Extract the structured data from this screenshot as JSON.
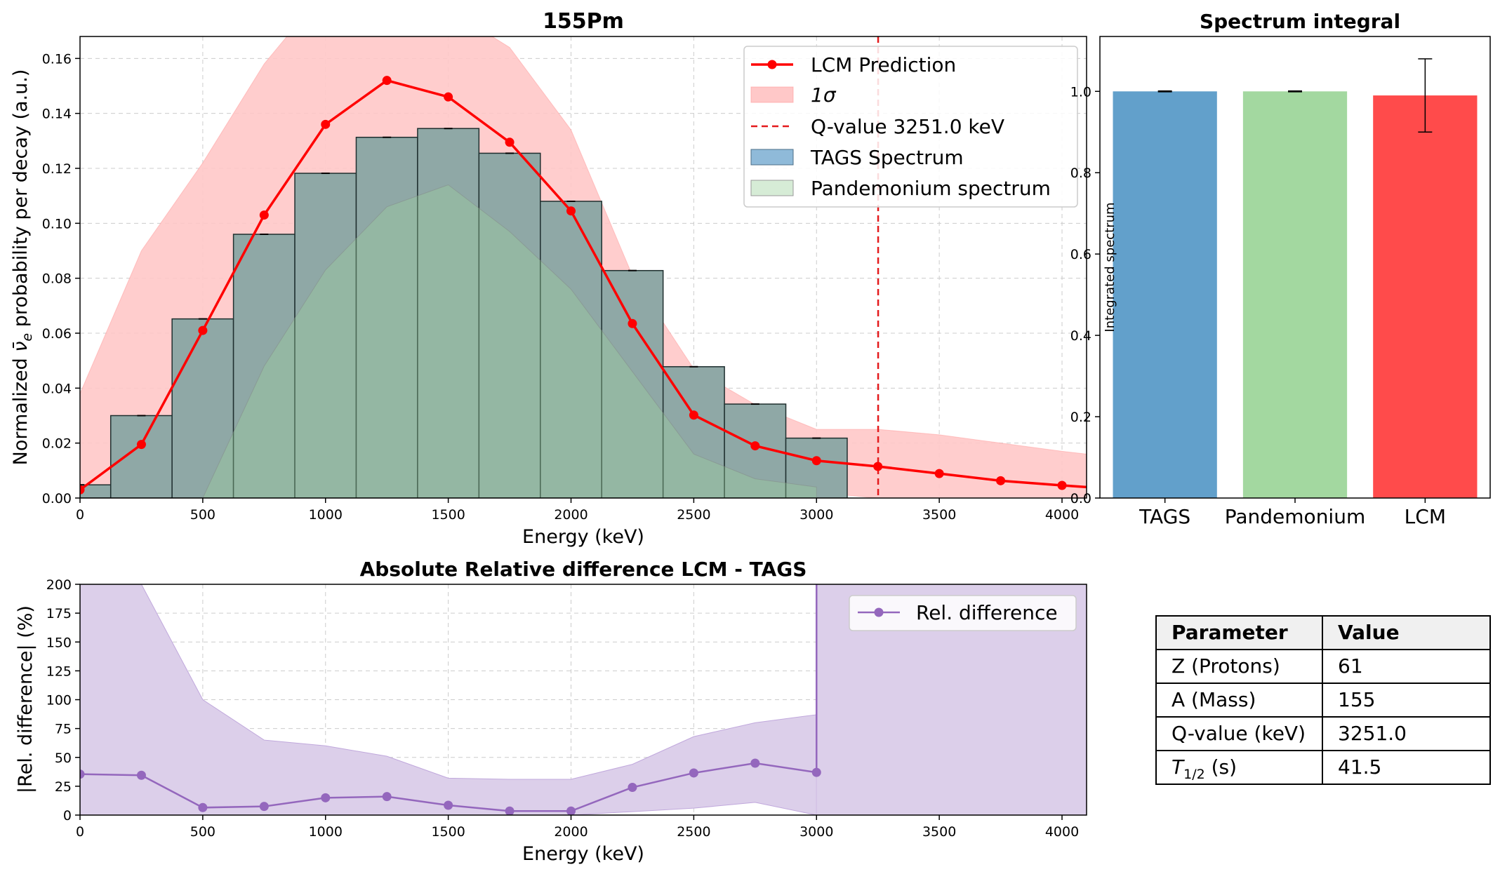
{
  "chart_data": [
    {
      "type": "bar",
      "title": "155Pm",
      "xlabel": "Energy (keV)",
      "ylabel_parts": [
        "Normalized ",
        "ν̄",
        "e",
        " probability per decay (a.u.)"
      ],
      "xlim": [
        0,
        4100
      ],
      "ylim": [
        0,
        0.168
      ],
      "xticks": [
        0,
        500,
        1000,
        1500,
        2000,
        2500,
        3000,
        3500,
        4000
      ],
      "yticks": [
        0.0,
        0.02,
        0.04,
        0.06,
        0.08,
        0.1,
        0.12,
        0.14,
        0.16
      ],
      "grid": true,
      "legend_position": "top-right",
      "legend": [
        "LCM Prediction",
        "1σ",
        "Q-value 3251.0 keV",
        "TAGS Spectrum",
        "Pandemonium spectrum"
      ],
      "colors": {
        "lcm": "#ff0000",
        "band": "#ffc8c8",
        "tags": "#8fbad9",
        "pandemonium": "#9ed39e",
        "overlap": "#87bcbb",
        "qline": "#e41a1c"
      },
      "bin_width": 250,
      "tags_spectrum": {
        "bin_centers": [
          0,
          250,
          500,
          750,
          1000,
          1250,
          1500,
          1750,
          2000,
          2250,
          2500,
          2750,
          3000
        ],
        "values": [
          0.0048,
          0.03,
          0.0652,
          0.096,
          0.1182,
          0.1313,
          0.1345,
          0.1255,
          0.108,
          0.0828,
          0.0478,
          0.0342,
          0.0218
        ]
      },
      "pandemonium_spectrum": {
        "x": [
          500,
          750,
          1000,
          1250,
          1500,
          1750,
          2000,
          2250,
          2500,
          2750,
          3000
        ],
        "values": [
          0.0,
          0.048,
          0.083,
          0.106,
          0.114,
          0.097,
          0.076,
          0.046,
          0.016,
          0.007,
          0.004
        ]
      },
      "lcm_prediction": {
        "x": [
          0,
          250,
          500,
          750,
          1000,
          1250,
          1500,
          1750,
          2000,
          2250,
          2500,
          2750,
          3000,
          3250,
          3500,
          3750,
          4000,
          4100
        ],
        "values": [
          0.003,
          0.0195,
          0.061,
          0.103,
          0.136,
          0.152,
          0.146,
          0.1295,
          0.1045,
          0.0635,
          0.0302,
          0.019,
          0.0136,
          0.0115,
          0.0089,
          0.0063,
          0.0046,
          0.004
        ]
      },
      "band_1sigma": {
        "x": [
          0,
          250,
          500,
          750,
          1000,
          1250,
          1500,
          1750,
          2000,
          2250,
          2500,
          2750,
          3000,
          3250,
          3500,
          3750,
          4000,
          4100
        ],
        "upper": [
          0.038,
          0.09,
          0.122,
          0.158,
          0.185,
          0.185,
          0.178,
          0.164,
          0.134,
          0.081,
          0.047,
          0.034,
          0.025,
          0.025,
          0.023,
          0.02,
          0.017,
          0.016
        ],
        "lower": [
          0.0,
          0.0,
          0.0,
          0.047,
          0.082,
          0.106,
          0.112,
          0.095,
          0.074,
          0.044,
          0.015,
          0.005,
          0.002,
          0.0,
          0.0,
          0.0,
          0.0,
          0.0
        ]
      },
      "q_value": 3251.0
    },
    {
      "type": "bar",
      "title": "Spectrum integral",
      "ylabel": "Integrated spectrum",
      "categories": [
        "TAGS",
        "Pandemonium",
        "LCM"
      ],
      "values": [
        1.0,
        1.0,
        0.99
      ],
      "errors": [
        0.001,
        0.001,
        0.09
      ],
      "colors": [
        "#62a0cb",
        "#a3d8a0",
        "#ff4b4b"
      ],
      "ylim": [
        0,
        1.135
      ],
      "yticks": [
        0.0,
        0.2,
        0.4,
        0.6,
        0.8,
        1.0
      ],
      "grid": false
    },
    {
      "type": "line",
      "title": "Absolute Relative difference LCM - TAGS",
      "xlabel": "Energy (keV)",
      "ylabel": "|Rel. difference| (%)",
      "xlim": [
        0,
        4100
      ],
      "ylim": [
        0,
        200
      ],
      "xticks": [
        0,
        500,
        1000,
        1500,
        2000,
        2500,
        3000,
        3500,
        4000
      ],
      "yticks": [
        0,
        25,
        50,
        75,
        100,
        125,
        150,
        175,
        200
      ],
      "grid": true,
      "legend_position": "top-right",
      "legend": [
        "Rel. difference"
      ],
      "colors": {
        "line": "#9467bd",
        "band": "#dccfea"
      },
      "series": [
        {
          "name": "Rel. difference",
          "x": [
            0,
            250,
            500,
            750,
            1000,
            1250,
            1500,
            1750,
            2000,
            2250,
            2500,
            2750,
            3000
          ],
          "values": [
            35.5,
            34.5,
            6.5,
            7.5,
            15.0,
            16.0,
            8.5,
            3.5,
            3.5,
            24.0,
            36.5,
            45.0,
            37.0
          ]
        }
      ],
      "band_upper": {
        "x": [
          0,
          250,
          500,
          750,
          1000,
          1250,
          1500,
          1750,
          2000,
          2250,
          2500,
          2750,
          3000
        ],
        "values": [
          200,
          200,
          100,
          65,
          60,
          51,
          32,
          31,
          31,
          44,
          68,
          80,
          87
        ]
      },
      "band_lower": {
        "x": [
          0,
          250,
          500,
          750,
          1000,
          1250,
          1500,
          1750,
          2000,
          2250,
          2500,
          2750,
          3000
        ],
        "values": [
          0,
          0,
          0,
          0,
          0,
          0,
          0,
          0,
          0,
          3,
          6,
          11,
          0
        ]
      },
      "post_q_fill_start": 3000,
      "jump_at": 3000
    }
  ],
  "parameters_table": {
    "headers": [
      "Parameter",
      "Value"
    ],
    "rows": [
      {
        "label": "Z (Protons)",
        "value": "61"
      },
      {
        "label": "A (Mass)",
        "value": "155"
      },
      {
        "label": "Q-value (keV)",
        "value": "3251.0"
      },
      {
        "label_main": "T",
        "label_sub": "1/2",
        "label_rest": " (s)",
        "value": "41.5"
      }
    ]
  }
}
